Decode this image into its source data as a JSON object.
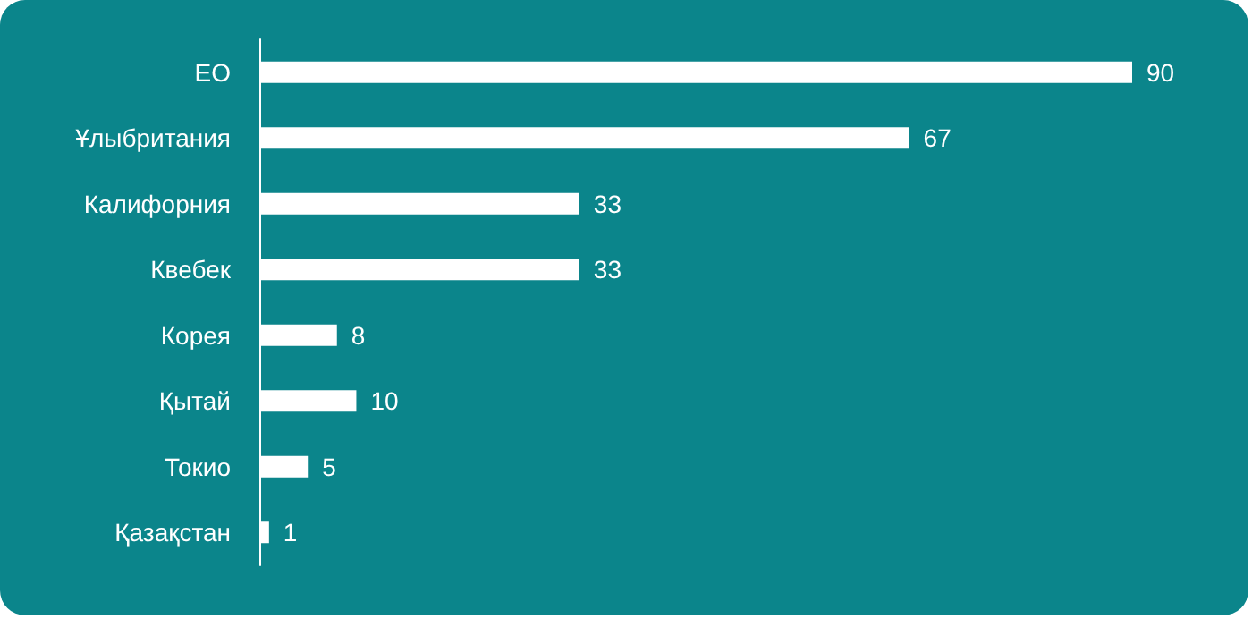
{
  "chart_data": {
    "type": "bar",
    "orientation": "horizontal",
    "categories": [
      "ЕО",
      "Ұлыбритания",
      "Калифорния",
      "Квебек",
      "Корея",
      "Қытай",
      "Токио",
      "Қазақстан"
    ],
    "values": [
      90,
      67,
      33,
      33,
      8,
      10,
      5,
      1
    ],
    "color": "#ffffff",
    "data_labels": true
  }
}
